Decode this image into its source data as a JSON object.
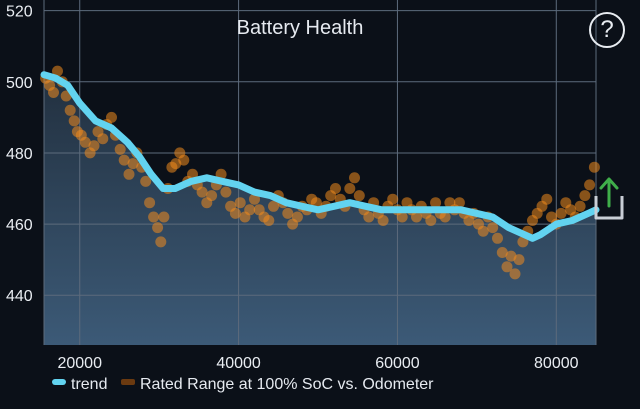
{
  "header": {
    "title": "Battery Health",
    "help_label": "?",
    "help_icon": "question-mark-circle-icon",
    "share_icon": "share-export-icon"
  },
  "colors": {
    "background": "#0b1018",
    "trend": "#62d3f0",
    "scatter": "#f08a1e",
    "grid": "#5d6b7c",
    "share_arrow": "#3fae4a"
  },
  "chart_data": {
    "type": "line",
    "title": "Battery Health",
    "xlabel": "",
    "ylabel": "",
    "xlim": [
      15500,
      85000
    ],
    "ylim": [
      426,
      523
    ],
    "x_ticks": [
      20000,
      40000,
      60000,
      80000
    ],
    "y_ticks": [
      440,
      460,
      480,
      500,
      520
    ],
    "grid": true,
    "legend_position": "bottom-left",
    "series": [
      {
        "name": "trend",
        "kind": "line",
        "color": "#62d3f0",
        "points": [
          [
            15500,
            502
          ],
          [
            17000,
            501
          ],
          [
            18500,
            499
          ],
          [
            20000,
            494
          ],
          [
            22000,
            489
          ],
          [
            24000,
            487
          ],
          [
            26000,
            483
          ],
          [
            27500,
            479
          ],
          [
            29000,
            474
          ],
          [
            30500,
            470
          ],
          [
            32000,
            470
          ],
          [
            34000,
            472
          ],
          [
            36000,
            473
          ],
          [
            38000,
            472
          ],
          [
            40000,
            471
          ],
          [
            42000,
            469
          ],
          [
            44000,
            468
          ],
          [
            46000,
            466
          ],
          [
            48000,
            465
          ],
          [
            50000,
            464
          ],
          [
            52000,
            465
          ],
          [
            54000,
            466
          ],
          [
            56000,
            465
          ],
          [
            58000,
            464
          ],
          [
            60000,
            464
          ],
          [
            62000,
            464
          ],
          [
            64000,
            464
          ],
          [
            66000,
            464
          ],
          [
            68000,
            464
          ],
          [
            70000,
            463
          ],
          [
            72000,
            462
          ],
          [
            74000,
            459
          ],
          [
            76000,
            457
          ],
          [
            77000,
            456
          ],
          [
            78000,
            457
          ],
          [
            80000,
            460
          ],
          [
            82000,
            461
          ],
          [
            84000,
            463
          ],
          [
            85000,
            464
          ]
        ]
      },
      {
        "name": "Rated Range at 100% SoC vs. Odometer",
        "kind": "scatter",
        "color": "#f08a1e",
        "points": [
          [
            15700,
            501
          ],
          [
            16200,
            499
          ],
          [
            16700,
            497
          ],
          [
            17200,
            503
          ],
          [
            17800,
            500
          ],
          [
            18300,
            496
          ],
          [
            18800,
            492
          ],
          [
            19300,
            489
          ],
          [
            19700,
            486
          ],
          [
            20200,
            485
          ],
          [
            20700,
            483
          ],
          [
            21300,
            480
          ],
          [
            21800,
            482
          ],
          [
            22300,
            486
          ],
          [
            22900,
            484
          ],
          [
            23400,
            488
          ],
          [
            24000,
            490
          ],
          [
            24500,
            485
          ],
          [
            25100,
            481
          ],
          [
            25600,
            478
          ],
          [
            26200,
            474
          ],
          [
            26700,
            477
          ],
          [
            27200,
            480
          ],
          [
            27800,
            476
          ],
          [
            28300,
            472
          ],
          [
            28800,
            466
          ],
          [
            29300,
            462
          ],
          [
            29800,
            459
          ],
          [
            30200,
            455
          ],
          [
            30600,
            462
          ],
          [
            31100,
            470
          ],
          [
            31600,
            476
          ],
          [
            32100,
            477
          ],
          [
            32600,
            480
          ],
          [
            33100,
            478
          ],
          [
            33600,
            472
          ],
          [
            34200,
            474
          ],
          [
            34800,
            471
          ],
          [
            35400,
            469
          ],
          [
            36000,
            466
          ],
          [
            36600,
            468
          ],
          [
            37200,
            471
          ],
          [
            37800,
            474
          ],
          [
            38400,
            469
          ],
          [
            39000,
            465
          ],
          [
            39600,
            463
          ],
          [
            40200,
            466
          ],
          [
            40800,
            462
          ],
          [
            41400,
            464
          ],
          [
            42000,
            467
          ],
          [
            42600,
            464
          ],
          [
            43200,
            462
          ],
          [
            43800,
            461
          ],
          [
            44400,
            465
          ],
          [
            45000,
            468
          ],
          [
            45600,
            466
          ],
          [
            46200,
            463
          ],
          [
            46800,
            460
          ],
          [
            47400,
            462
          ],
          [
            48000,
            465
          ],
          [
            48600,
            464
          ],
          [
            49200,
            467
          ],
          [
            49800,
            466
          ],
          [
            50400,
            463
          ],
          [
            51000,
            465
          ],
          [
            51600,
            468
          ],
          [
            52200,
            470
          ],
          [
            52800,
            467
          ],
          [
            53400,
            465
          ],
          [
            54000,
            470
          ],
          [
            54600,
            473
          ],
          [
            55200,
            468
          ],
          [
            55800,
            464
          ],
          [
            56400,
            462
          ],
          [
            57000,
            466
          ],
          [
            57600,
            463
          ],
          [
            58200,
            461
          ],
          [
            58800,
            465
          ],
          [
            59400,
            467
          ],
          [
            60000,
            464
          ],
          [
            60600,
            462
          ],
          [
            61200,
            466
          ],
          [
            61800,
            464
          ],
          [
            62400,
            462
          ],
          [
            63000,
            465
          ],
          [
            63600,
            463
          ],
          [
            64200,
            461
          ],
          [
            64800,
            466
          ],
          [
            65400,
            463
          ],
          [
            66000,
            462
          ],
          [
            66600,
            466
          ],
          [
            67200,
            464
          ],
          [
            67800,
            466
          ],
          [
            68400,
            463
          ],
          [
            69000,
            461
          ],
          [
            69600,
            463
          ],
          [
            70200,
            460
          ],
          [
            70800,
            458
          ],
          [
            71400,
            462
          ],
          [
            72000,
            459
          ],
          [
            72600,
            456
          ],
          [
            73200,
            452
          ],
          [
            73800,
            448
          ],
          [
            74300,
            451
          ],
          [
            74800,
            446
          ],
          [
            75300,
            450
          ],
          [
            75800,
            455
          ],
          [
            76400,
            458
          ],
          [
            77000,
            461
          ],
          [
            77600,
            463
          ],
          [
            78200,
            465
          ],
          [
            78800,
            467
          ],
          [
            79400,
            462
          ],
          [
            80000,
            460
          ],
          [
            80600,
            463
          ],
          [
            81200,
            466
          ],
          [
            81800,
            464
          ],
          [
            82400,
            462
          ],
          [
            83000,
            465
          ],
          [
            83600,
            468
          ],
          [
            84200,
            471
          ],
          [
            84800,
            476
          ]
        ]
      }
    ]
  }
}
